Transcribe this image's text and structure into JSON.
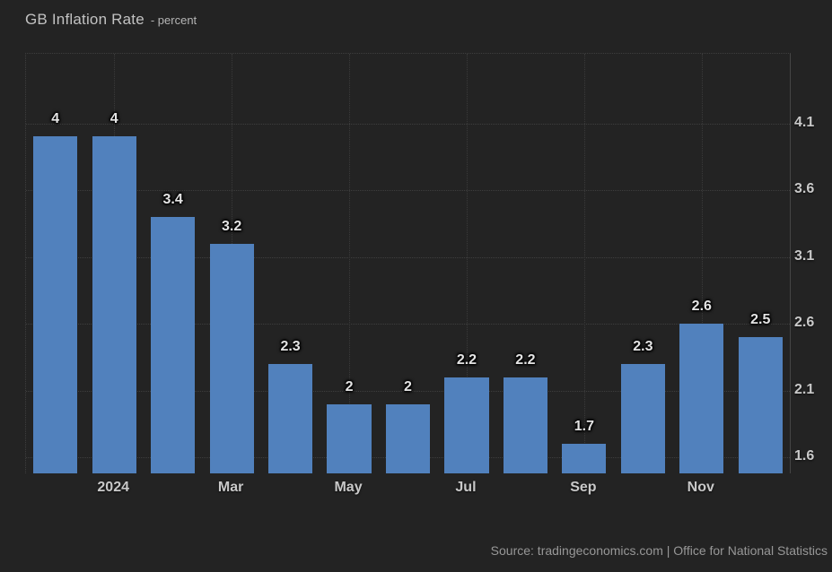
{
  "title": {
    "main": "GB Inflation Rate",
    "suffix": "- percent"
  },
  "source": "Source: tradingeconomics.com | Office for National Statistics",
  "colors": {
    "background": "#232323",
    "bar": "#5181bd",
    "grid": "#3e3e3e",
    "axis_line": "#454545",
    "value_label": "#e4e4e4",
    "tick_label": "#c9c9c9",
    "title_text": "#c2c2c2",
    "source_text": "#979797"
  },
  "chart_data": {
    "type": "bar",
    "title": "GB Inflation Rate",
    "subtitle": "percent",
    "values": [
      4,
      4,
      3.4,
      3.2,
      2.3,
      2,
      2,
      2.2,
      2.2,
      1.7,
      2.3,
      2.6,
      2.5
    ],
    "bar_labels": [
      "4",
      "4",
      "3.4",
      "3.2",
      "2.3",
      "2",
      "2",
      "2.2",
      "2.2",
      "1.7",
      "2.3",
      "2.6",
      "2.5"
    ],
    "x_ticks": [
      {
        "bar_index": 1,
        "label": "2024"
      },
      {
        "bar_index": 3,
        "label": "Mar"
      },
      {
        "bar_index": 5,
        "label": "May"
      },
      {
        "bar_index": 7,
        "label": "Jul"
      },
      {
        "bar_index": 9,
        "label": "Sep"
      },
      {
        "bar_index": 11,
        "label": "Nov"
      }
    ],
    "y_ticks": [
      "4.1",
      "3.6",
      "3.1",
      "2.6",
      "2.1",
      "1.6"
    ],
    "ylim": [
      1.48,
      4.62
    ],
    "y_axis_side": "right",
    "grid": "dotted",
    "legend": false,
    "bar_width_fraction": 0.75
  }
}
